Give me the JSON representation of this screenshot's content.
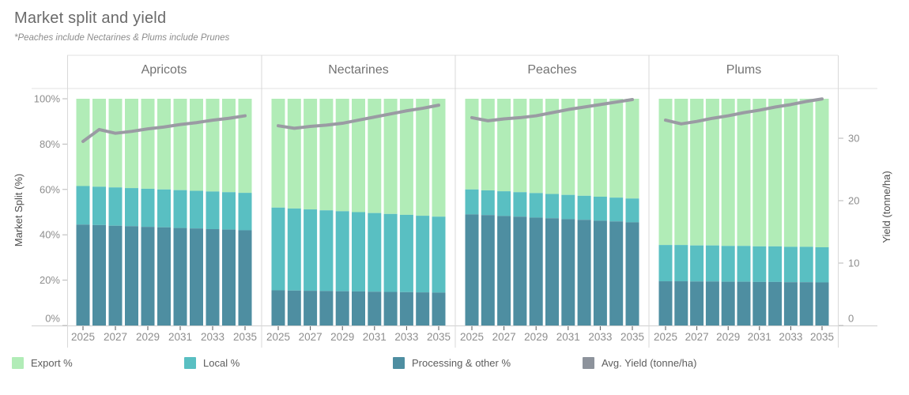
{
  "header": {
    "title": "Market split and yield",
    "subtitle": "*Peaches include Nectarines & Plums include Prunes"
  },
  "axes": {
    "left_title": "Market Split (%)",
    "left_tick_labels": [
      "0%",
      "20%",
      "40%",
      "60%",
      "80%",
      "100%"
    ],
    "right_title": "Yield (tonne/ha)",
    "right_tick_labels": [
      "0",
      "10",
      "20",
      "30"
    ],
    "x_tick_labels": [
      "2025",
      "2027",
      "2029",
      "2031",
      "2033",
      "2035"
    ]
  },
  "legend": [
    {
      "label": "Export %",
      "color": "#b1ecb7",
      "icon": "swatch-export"
    },
    {
      "label": "Local %",
      "color": "#59bfc2",
      "icon": "swatch-local"
    },
    {
      "label": "Processing & other %",
      "color": "#4e8ea1",
      "icon": "swatch-processing"
    },
    {
      "label": "Avg. Yield (tonne/ha)",
      "color": "#8d939c",
      "icon": "swatch-yield"
    }
  ],
  "chart_data": {
    "type": "combo: stacked-bar (left axis %) + line (right axis tonne/ha), 4 small-multiple panels",
    "x": [
      2025,
      2026,
      2027,
      2028,
      2029,
      2030,
      2031,
      2032,
      2033,
      2034,
      2035
    ],
    "x_labeled_ticks": [
      2025,
      2027,
      2029,
      2031,
      2033,
      2035
    ],
    "left_axis": {
      "title": "Market Split (%)",
      "ticks": [
        0,
        20,
        40,
        60,
        80,
        100
      ],
      "range": [
        0,
        100
      ]
    },
    "right_axis": {
      "title": "Yield (tonne/ha)",
      "ticks": [
        0,
        10,
        20,
        30
      ],
      "range": [
        0,
        36.3
      ]
    },
    "grid": "off",
    "legend_position": "bottom",
    "colors": {
      "export": "#b1ecb7",
      "local": "#59bfc2",
      "processing": "#4e8ea1",
      "yield_line": "#9a9ba3"
    },
    "panels": [
      {
        "name": "Apricots",
        "export_pct": [
          38.5,
          38.8,
          39.1,
          39.4,
          39.7,
          40.0,
          40.3,
          40.6,
          40.9,
          41.2,
          41.5
        ],
        "local_pct": [
          17.0,
          16.9,
          16.9,
          16.8,
          16.8,
          16.7,
          16.7,
          16.6,
          16.6,
          16.5,
          16.5
        ],
        "processing_pct": [
          44.5,
          44.3,
          44.0,
          43.8,
          43.5,
          43.3,
          43.0,
          42.8,
          42.5,
          42.3,
          42.0
        ],
        "yield_tonne_ha": [
          29.5,
          31.4,
          30.8,
          31.1,
          31.5,
          31.8,
          32.2,
          32.5,
          32.9,
          33.2,
          33.6
        ]
      },
      {
        "name": "Nectarines",
        "export_pct": [
          48.0,
          48.4,
          48.8,
          49.2,
          49.6,
          50.0,
          50.4,
          50.8,
          51.2,
          51.6,
          52.0
        ],
        "local_pct": [
          36.5,
          36.2,
          35.9,
          35.6,
          35.3,
          35.0,
          34.7,
          34.4,
          34.1,
          33.8,
          33.5
        ],
        "processing_pct": [
          15.5,
          15.4,
          15.3,
          15.2,
          15.1,
          15.0,
          14.9,
          14.8,
          14.7,
          14.6,
          14.5
        ],
        "yield_tonne_ha": [
          32.0,
          31.6,
          31.9,
          32.1,
          32.4,
          32.9,
          33.4,
          33.9,
          34.4,
          34.8,
          35.3
        ]
      },
      {
        "name": "Peaches",
        "export_pct": [
          40.0,
          40.4,
          40.8,
          41.2,
          41.6,
          42.0,
          42.4,
          42.8,
          43.2,
          43.6,
          44.0
        ],
        "local_pct": [
          11.0,
          10.9,
          10.9,
          10.8,
          10.8,
          10.7,
          10.7,
          10.6,
          10.6,
          10.5,
          10.5
        ],
        "processing_pct": [
          49.0,
          48.7,
          48.3,
          48.0,
          47.6,
          47.3,
          46.9,
          46.6,
          46.2,
          45.9,
          45.5
        ],
        "yield_tonne_ha": [
          33.3,
          32.8,
          33.1,
          33.3,
          33.6,
          34.1,
          34.6,
          35.0,
          35.4,
          35.8,
          36.2
        ]
      },
      {
        "name": "Plums",
        "export_pct": [
          64.5,
          64.5,
          64.7,
          64.7,
          64.9,
          64.9,
          65.1,
          65.1,
          65.3,
          65.3,
          65.5
        ],
        "local_pct": [
          16.0,
          16.0,
          15.9,
          15.9,
          15.8,
          15.8,
          15.7,
          15.7,
          15.6,
          15.6,
          15.5
        ],
        "processing_pct": [
          19.5,
          19.5,
          19.4,
          19.4,
          19.3,
          19.3,
          19.2,
          19.2,
          19.1,
          19.1,
          19.0
        ],
        "yield_tonne_ha": [
          32.9,
          32.3,
          32.7,
          33.2,
          33.6,
          34.1,
          34.5,
          35.0,
          35.4,
          35.9,
          36.3
        ]
      }
    ]
  }
}
